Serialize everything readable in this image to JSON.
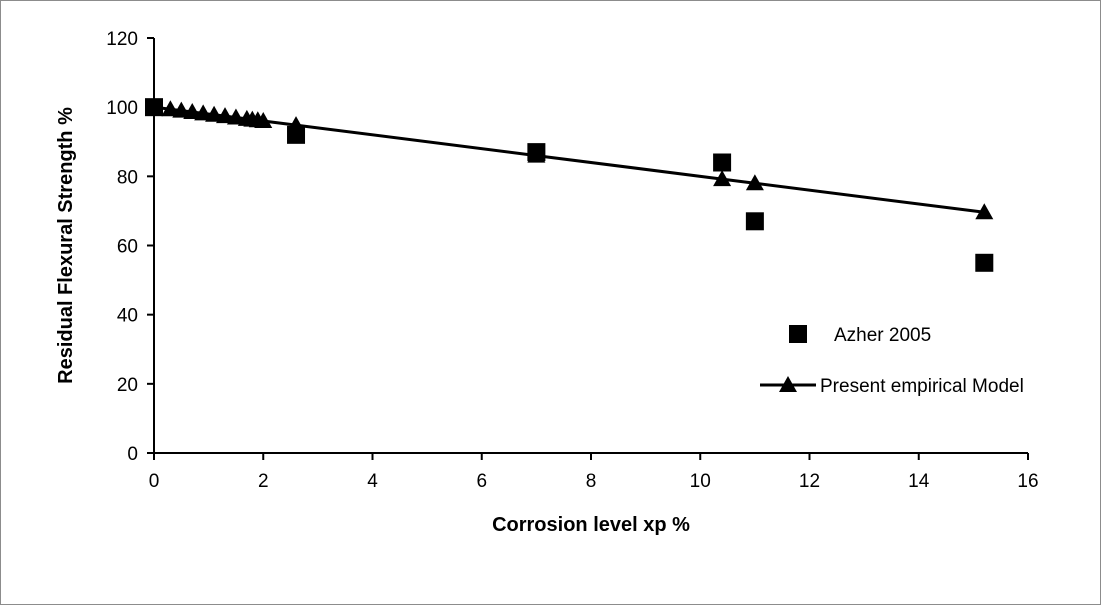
{
  "chart_data": {
    "type": "scatter",
    "title": "",
    "xlabel": "Corrosion level xp %",
    "ylabel": "Residual Flexural Strength %",
    "xlim": [
      0,
      16
    ],
    "ylim": [
      0,
      120
    ],
    "x_ticks": [
      0,
      2,
      4,
      6,
      8,
      10,
      12,
      14,
      16
    ],
    "y_ticks": [
      0,
      20,
      40,
      60,
      80,
      100,
      120
    ],
    "grid": false,
    "legend_position": "right",
    "series": [
      {
        "name": "Azher 2005",
        "kind": "points",
        "marker": "square",
        "color": "#000000",
        "points": [
          {
            "x": 0,
            "y": 100
          },
          {
            "x": 2.6,
            "y": 92
          },
          {
            "x": 7.0,
            "y": 87
          },
          {
            "x": 10.4,
            "y": 84
          },
          {
            "x": 11.0,
            "y": 67
          },
          {
            "x": 15.2,
            "y": 55
          }
        ]
      },
      {
        "name": "Present empirical Model",
        "kind": "line-with-markers",
        "marker": "triangle",
        "color": "#000000",
        "points": [
          {
            "x": 0,
            "y": 100
          },
          {
            "x": 0.3,
            "y": 99.4
          },
          {
            "x": 0.5,
            "y": 99.0
          },
          {
            "x": 0.7,
            "y": 98.6
          },
          {
            "x": 0.9,
            "y": 98.2
          },
          {
            "x": 1.1,
            "y": 97.8
          },
          {
            "x": 1.3,
            "y": 97.4
          },
          {
            "x": 1.5,
            "y": 97.0
          },
          {
            "x": 1.7,
            "y": 96.6
          },
          {
            "x": 1.8,
            "y": 96.4
          },
          {
            "x": 1.9,
            "y": 96.2
          },
          {
            "x": 2.0,
            "y": 96.0
          },
          {
            "x": 2.6,
            "y": 94.8
          },
          {
            "x": 7.0,
            "y": 86.0
          },
          {
            "x": 10.4,
            "y": 79.2
          },
          {
            "x": 11.0,
            "y": 78.0
          },
          {
            "x": 15.2,
            "y": 69.6
          }
        ]
      }
    ]
  }
}
